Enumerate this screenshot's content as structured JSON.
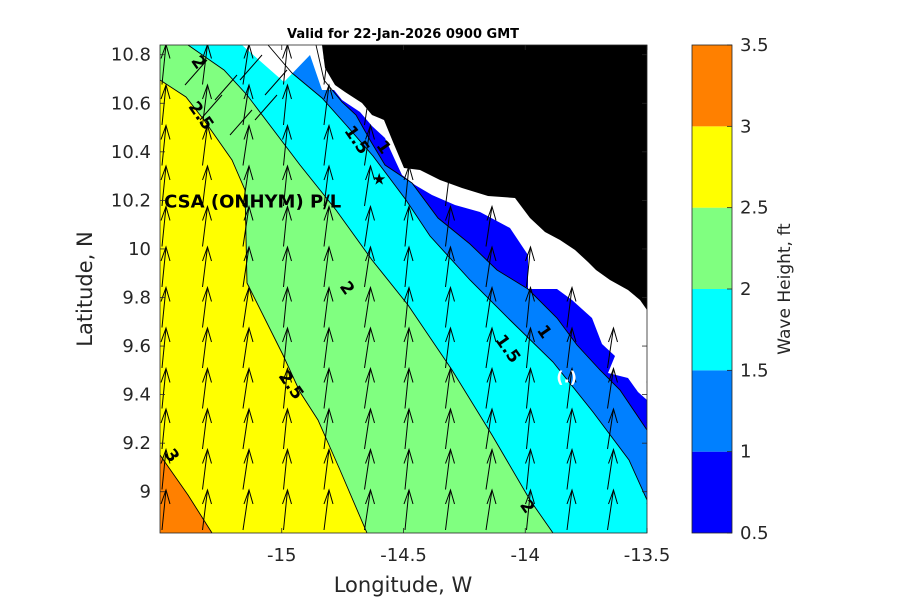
{
  "chart_data": {
    "type": "contour",
    "title": "Valid for 22-Jan-2026 0900 GMT",
    "xlabel": "Longitude, W",
    "ylabel": "Latitude, N",
    "xlim": [
      -15.5,
      -13.5
    ],
    "ylim": [
      8.83,
      10.84
    ],
    "xticks": [
      -15,
      -14.5,
      -14,
      -13.5
    ],
    "xtick_labels": [
      "-15",
      "-14.5",
      "-14",
      "-13.5"
    ],
    "yticks": [
      9,
      9.2,
      9.4,
      9.6,
      9.8,
      10,
      10.2,
      10.4,
      10.6,
      10.8
    ],
    "ytick_labels": [
      "9",
      "9.2",
      "9.4",
      "9.6",
      "9.8",
      "10",
      "10.2",
      "10.4",
      "10.6",
      "10.8"
    ],
    "colorbar": {
      "label": "Wave Height, ft",
      "levels": [
        0.5,
        1,
        1.5,
        2,
        2.5,
        3,
        3.5
      ],
      "tick_labels": [
        "0.5",
        "1",
        "1.5",
        "2",
        "2.5",
        "3",
        "3.5"
      ],
      "colors": [
        "#0000ff",
        "#0080ff",
        "#00ffff",
        "#80ff80",
        "#ffff00",
        "#ff8000"
      ]
    },
    "contour_labels": [
      {
        "text": "3",
        "x": -15.45,
        "y": 9.15
      },
      {
        "text": "2.5",
        "x": -15.33,
        "y": 10.55
      },
      {
        "text": "2.5",
        "x": -14.96,
        "y": 9.44
      },
      {
        "text": "2",
        "x": -15.34,
        "y": 10.77
      },
      {
        "text": "2",
        "x": -14.73,
        "y": 9.84
      },
      {
        "text": "2",
        "x": -13.99,
        "y": 8.94
      },
      {
        "text": "1.5",
        "x": -14.69,
        "y": 10.45
      },
      {
        "text": "1.5",
        "x": -14.07,
        "y": 9.59
      },
      {
        "text": "1",
        "x": -14.58,
        "y": 10.42
      },
      {
        "text": "1",
        "x": -13.92,
        "y": 9.66
      }
    ],
    "station": {
      "name": "CSA (ONHYM) P/L",
      "x": -14.6,
      "y": 10.2
    },
    "marker": {
      "text": "(.)",
      "x": -13.83,
      "y": 9.47
    },
    "wave_direction": "arrows pointing toward the north-northeast"
  }
}
